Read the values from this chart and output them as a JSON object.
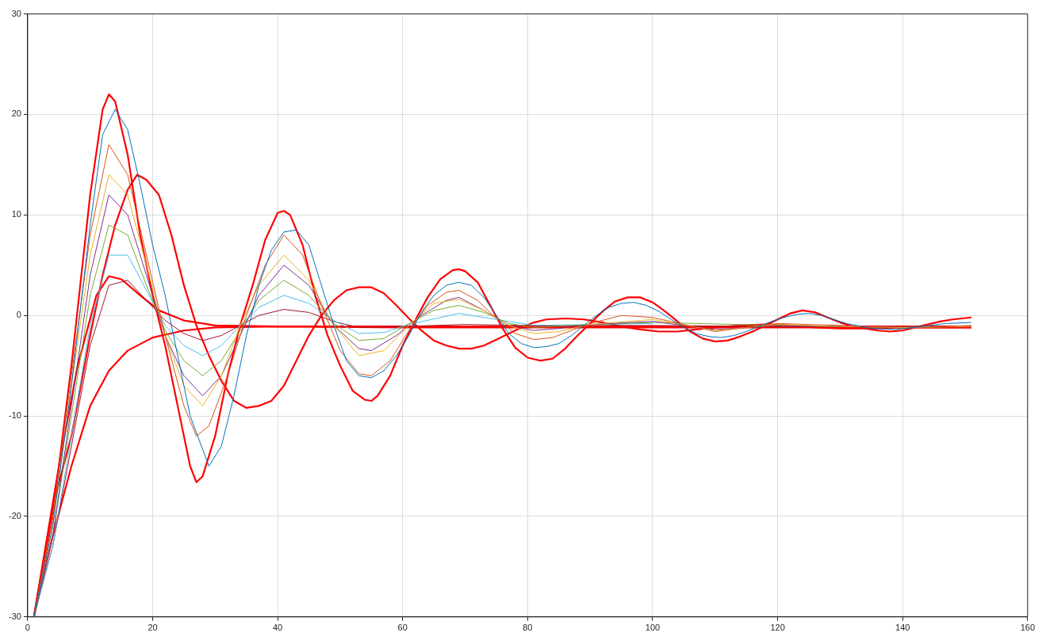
{
  "chart_data": {
    "type": "line",
    "xlim": [
      0,
      160
    ],
    "xticks": [
      0,
      20,
      40,
      60,
      80,
      100,
      120,
      140,
      160
    ],
    "ylim": [
      -30,
      30
    ],
    "yticks": [
      -30,
      -20,
      -10,
      0,
      10,
      20,
      30
    ],
    "grid": true,
    "marker": "none",
    "line_style": "solid",
    "series": [
      {
        "color": "#0072bd",
        "x": [
          1,
          4,
          7,
          10,
          12,
          14,
          16,
          18,
          20,
          22,
          24,
          26,
          29,
          31,
          33,
          35,
          37,
          39,
          41,
          43,
          45,
          47,
          49,
          51,
          53,
          55,
          57,
          59,
          61,
          63,
          65,
          67,
          69,
          71,
          73,
          75,
          77,
          79,
          81,
          83,
          85,
          87,
          89,
          91,
          93,
          95,
          97,
          99,
          101,
          103,
          105,
          107,
          109,
          111,
          113,
          115,
          117,
          119,
          121,
          123,
          125,
          127,
          129,
          131,
          135,
          139,
          143,
          147,
          151
        ],
        "values": [
          -30,
          -21,
          -7,
          9,
          18,
          20.5,
          18.5,
          13,
          7,
          2,
          -4,
          -10,
          -15,
          -13,
          -8,
          -2,
          3,
          6.5,
          8.3,
          8.5,
          7,
          3,
          -1,
          -4.5,
          -6,
          -6.2,
          -5.5,
          -4,
          -2,
          0.3,
          2,
          3,
          3.3,
          3,
          1.8,
          0,
          -1.8,
          -2.8,
          -3.2,
          -3.1,
          -2.8,
          -2,
          -1,
          0,
          0.8,
          1.2,
          1.3,
          1,
          0.4,
          -0.4,
          -1.2,
          -1.8,
          -2.1,
          -2.2,
          -2,
          -1.6,
          -1.1,
          -0.6,
          -0.2,
          0.1,
          0.2,
          0,
          -0.4,
          -0.8,
          -1.3,
          -1.4,
          -1.1,
          -0.8,
          -0.7
        ]
      },
      {
        "color": "#d95319",
        "x": [
          1,
          4,
          7,
          10,
          13,
          16,
          19,
          22,
          25,
          27,
          29,
          32,
          35,
          38,
          41,
          44,
          47,
          50,
          53,
          55,
          58,
          61,
          64,
          67,
          69,
          72,
          75,
          78,
          81,
          84,
          87,
          90,
          95,
          100,
          110,
          120,
          130,
          140,
          151
        ],
        "values": [
          -30,
          -20,
          -6,
          8,
          17,
          14,
          6,
          -2,
          -9,
          -12,
          -11,
          -6,
          0,
          5,
          8,
          6,
          1,
          -3.5,
          -5.8,
          -6,
          -4.5,
          -1.5,
          1,
          2.3,
          2.5,
          1.5,
          -0.3,
          -1.8,
          -2.4,
          -2.2,
          -1.5,
          -0.8,
          0,
          -0.2,
          -1.6,
          -0.8,
          -1,
          -1.3,
          -1
        ]
      },
      {
        "color": "#edb120",
        "x": [
          1,
          4,
          7,
          10,
          13,
          16,
          19,
          22,
          25,
          28,
          31,
          34,
          37,
          41,
          45,
          49,
          53,
          57,
          61,
          65,
          69,
          73,
          77,
          81,
          85,
          90,
          100,
          110,
          120,
          130,
          140,
          151
        ],
        "values": [
          -30,
          -21,
          -7,
          6,
          14,
          12,
          5,
          -2,
          -7,
          -9,
          -6,
          -1,
          3,
          6,
          3.5,
          -1,
          -4,
          -3.5,
          -1,
          1.2,
          1.6,
          0.5,
          -1,
          -1.8,
          -1.6,
          -0.9,
          -0.4,
          -1.5,
          -0.9,
          -1.1,
          -1.2,
          -1.1
        ]
      },
      {
        "color": "#7e2f8e",
        "x": [
          1,
          4,
          7,
          10,
          13,
          16,
          19,
          22,
          25,
          28,
          31,
          34,
          37,
          41,
          45,
          49,
          53,
          55,
          59,
          63,
          67,
          69,
          73,
          77,
          81,
          85,
          90,
          100,
          110,
          120,
          130,
          140,
          151
        ],
        "values": [
          -30,
          -22,
          -9,
          4,
          12,
          10,
          4,
          -2,
          -6,
          -8,
          -6,
          -2,
          2,
          5,
          3,
          -1,
          -3.3,
          -3.5,
          -2,
          0,
          1.5,
          1.8,
          0.5,
          -1,
          -1.5,
          -1.3,
          -0.9,
          -0.6,
          -1.4,
          -1,
          -1.1,
          -1.2,
          -1.1
        ]
      },
      {
        "color": "#77ac30",
        "x": [
          1,
          4,
          7,
          10,
          13,
          16,
          19,
          22,
          25,
          28,
          31,
          34,
          37,
          41,
          45,
          49,
          53,
          57,
          61,
          65,
          69,
          73,
          77,
          81,
          90,
          100,
          120,
          140,
          151
        ],
        "values": [
          -30,
          -22,
          -10,
          2,
          9,
          8,
          3,
          -1.5,
          -4.5,
          -6,
          -4.5,
          -1.5,
          1.5,
          3.5,
          2,
          -0.8,
          -2.5,
          -2.3,
          -0.8,
          0.5,
          1,
          0.3,
          -0.8,
          -1.2,
          -0.9,
          -0.7,
          -1,
          -1.2,
          -1.1
        ]
      },
      {
        "color": "#4dbeee",
        "x": [
          1,
          4,
          7,
          10,
          13,
          16,
          19,
          22,
          25,
          28,
          31,
          34,
          37,
          41,
          45,
          49,
          53,
          57,
          61,
          69,
          81,
          100
        ],
        "values": [
          -30,
          -23,
          -12,
          -1,
          6,
          6,
          2.5,
          -1,
          -3,
          -4,
          -3,
          -1,
          0.8,
          2,
          1.2,
          -0.5,
          -1.8,
          -1.7,
          -0.9,
          0.2,
          -1,
          -0.8
        ]
      },
      {
        "color": "#a2142f",
        "x": [
          1,
          4,
          7,
          10,
          13,
          16,
          19,
          22,
          25,
          28,
          31,
          34,
          37,
          41,
          45,
          49,
          53,
          60,
          70,
          80,
          100,
          120,
          151
        ],
        "values": [
          -30,
          -23,
          -13,
          -3,
          3,
          3.5,
          1.5,
          -0.5,
          -1.8,
          -2.5,
          -2,
          -1,
          0,
          0.6,
          0.3,
          -0.6,
          -1.2,
          -1.1,
          -0.9,
          -1,
          -1,
          -1.1,
          -1.1
        ]
      },
      {
        "color": "#ff0000",
        "x": [
          1,
          4,
          7,
          10,
          12,
          13,
          14,
          16,
          18,
          20,
          22,
          24,
          26,
          27,
          28,
          30,
          32,
          34,
          36,
          38,
          40,
          41,
          42,
          44,
          46,
          48,
          50,
          52,
          54,
          55,
          56,
          58,
          60,
          62,
          64,
          66,
          68,
          69,
          70,
          72,
          74,
          76,
          78,
          80,
          82,
          84,
          86,
          88,
          90,
          92,
          94,
          96,
          98,
          100,
          102,
          104,
          106,
          108,
          110,
          112,
          114,
          116,
          118,
          120,
          122,
          124,
          126,
          128,
          130,
          132,
          134,
          136,
          138,
          140,
          142,
          144,
          146,
          148,
          151
        ],
        "values": [
          -30,
          -20,
          -5,
          12,
          20.5,
          22,
          21.3,
          16,
          8,
          2,
          -3,
          -9,
          -15,
          -16.6,
          -16,
          -12,
          -6,
          -1,
          3,
          7.5,
          10.2,
          10.4,
          10,
          7,
          2,
          -2,
          -5,
          -7.5,
          -8.4,
          -8.5,
          -8,
          -6,
          -3,
          -0.5,
          1.8,
          3.6,
          4.5,
          4.6,
          4.4,
          3.3,
          1,
          -1.3,
          -3.2,
          -4.2,
          -4.5,
          -4.3,
          -3.3,
          -2,
          -0.8,
          0.4,
          1.4,
          1.8,
          1.8,
          1.3,
          0.4,
          -0.6,
          -1.6,
          -2.3,
          -2.6,
          -2.5,
          -2.1,
          -1.6,
          -1,
          -0.4,
          0.2,
          0.5,
          0.3,
          -0.2,
          -0.7,
          -1.1,
          -1.3,
          -1.5,
          -1.6,
          -1.5,
          -1.2,
          -0.9,
          -0.6,
          -0.4,
          -0.2
        ]
      },
      {
        "color": "#ff0000",
        "x": [
          1,
          4,
          7,
          10,
          12,
          14,
          16,
          17.5,
          19,
          21,
          23,
          25,
          27,
          29,
          31,
          33,
          35,
          37,
          39,
          41,
          43,
          45,
          47,
          49,
          51,
          53,
          55,
          57,
          59,
          61,
          63,
          65,
          67,
          69,
          71,
          73,
          75,
          77,
          79,
          81,
          83,
          86,
          89,
          92,
          95,
          98,
          101,
          104,
          107,
          110,
          114,
          118,
          122,
          126,
          130,
          135,
          140,
          145,
          151
        ],
        "values": [
          -30,
          -19,
          -12,
          -2,
          4,
          9,
          12.5,
          14,
          13.5,
          12,
          8,
          3,
          -1,
          -4,
          -6.5,
          -8.5,
          -9.2,
          -9,
          -8.5,
          -7,
          -4.5,
          -2,
          0,
          1.5,
          2.5,
          2.8,
          2.8,
          2.2,
          1,
          -0.3,
          -1.5,
          -2.5,
          -3,
          -3.3,
          -3.3,
          -3,
          -2.4,
          -1.8,
          -1.2,
          -0.7,
          -0.4,
          -0.3,
          -0.4,
          -0.7,
          -1.1,
          -1.4,
          -1.6,
          -1.6,
          -1.4,
          -1.2,
          -1,
          -0.9,
          -1,
          -1.2,
          -1.3,
          -1.3,
          -1.2,
          -1.2,
          -1.2
        ]
      },
      {
        "color": "#ff0000",
        "x": [
          1,
          5,
          8,
          11,
          13,
          15,
          18,
          21,
          25,
          30,
          40,
          60,
          80,
          100,
          120,
          140,
          151
        ],
        "values": [
          -30,
          -15,
          -5,
          2,
          3.9,
          3.6,
          2,
          0.5,
          -0.5,
          -1,
          -1.1,
          -1.1,
          -1.1,
          -1.1,
          -1.1,
          -1.1,
          -1.1
        ]
      },
      {
        "color": "#ff0000",
        "x": [
          1,
          4,
          7,
          10,
          13,
          16,
          20,
          25,
          30,
          40,
          60,
          80,
          100,
          120,
          140,
          151
        ],
        "values": [
          -30,
          -22,
          -15,
          -9,
          -5.5,
          -3.5,
          -2.2,
          -1.5,
          -1.2,
          -1.1,
          -1.2,
          -1.2,
          -1.2,
          -1.2,
          -1.2,
          -1.2
        ]
      }
    ]
  }
}
